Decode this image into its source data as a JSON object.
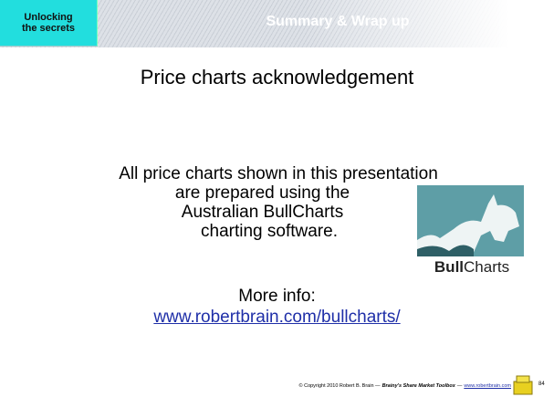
{
  "header": {
    "badge_lines": [
      "Unlocking",
      "the secrets"
    ],
    "section": "Summary & Wrap up"
  },
  "title": "Price charts acknowledgement",
  "body": {
    "lines": [
      "All price charts shown in this presentation",
      "are prepared using the",
      "Australian BullCharts",
      "charting software."
    ]
  },
  "logo": {
    "bold": "Bull",
    "rest": "Charts"
  },
  "more_info": {
    "label": "More info:",
    "link": "www.robertbrain.com/bullcharts/"
  },
  "footer": {
    "copyright": "© Copyright 2010 Robert B. Brain —",
    "book": "Brainy's Share Market Toolbox",
    "separator": "—",
    "url": "www.robertbrain.com",
    "page": "84"
  }
}
